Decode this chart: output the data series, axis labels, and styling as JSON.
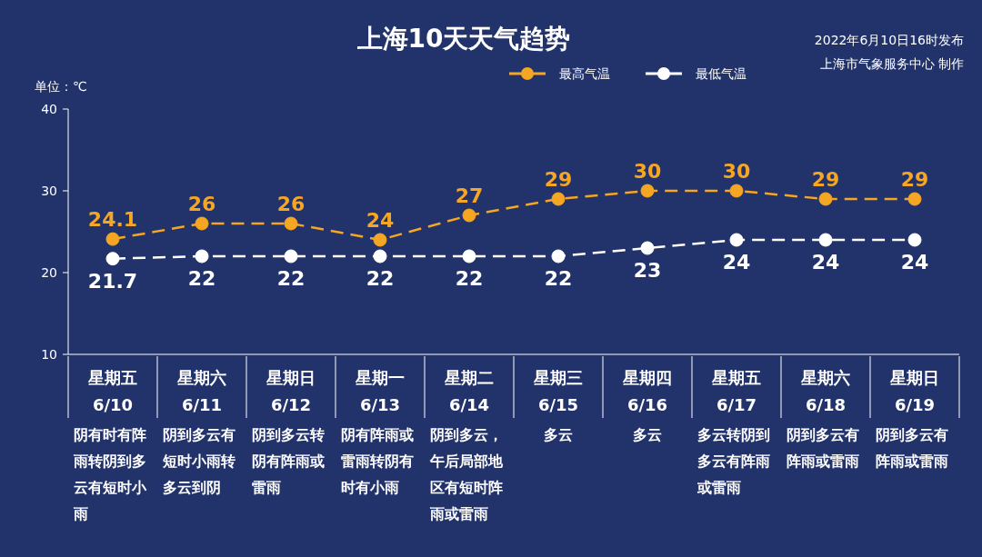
{
  "chart_data": {
    "type": "line",
    "title": "上海10天天气趋势",
    "ylabel": "单位：℃",
    "categories": [
      "星期五\n6/10",
      "星期六\n6/11",
      "星期日\n6/12",
      "星期一\n6/13",
      "星期二\n6/14",
      "星期三\n6/15",
      "星期四\n6/16",
      "星期五\n6/17",
      "星期六\n6/18",
      "星期日\n6/19"
    ],
    "series": [
      {
        "name": "最高气温",
        "color": "#f5a623",
        "values": [
          24.1,
          26,
          26,
          24,
          27,
          29,
          30,
          30,
          29,
          29
        ]
      },
      {
        "name": "最低气温",
        "color": "#ffffff",
        "values": [
          21.7,
          22,
          22,
          22,
          22,
          22,
          23,
          24,
          24,
          24
        ]
      }
    ],
    "ylim": [
      10,
      40
    ],
    "yticks": [
      10,
      20,
      30,
      40
    ],
    "grid": false,
    "legend": "top right",
    "marker": "circle",
    "line_style": "dashed",
    "data_labels": true,
    "annotations": [
      "阴有时有阵雨转阴到多云有短时小雨",
      "阴到多云有短时小雨转多云到阴",
      "阴到多云转阴有阵雨或雷雨",
      "阴有阵雨或雷雨转阴有时有小雨",
      "阴到多云，午后局部地区有短时阵雨或雷雨",
      "多云",
      "多云",
      "多云转阴到多云有阵雨或雷雨",
      "阴到多云有阵雨或雷雨",
      "阴到多云有阵雨或雷雨",
      "2022年6月10日16时发布",
      "上海市气象服务中心 制作"
    ]
  }
}
